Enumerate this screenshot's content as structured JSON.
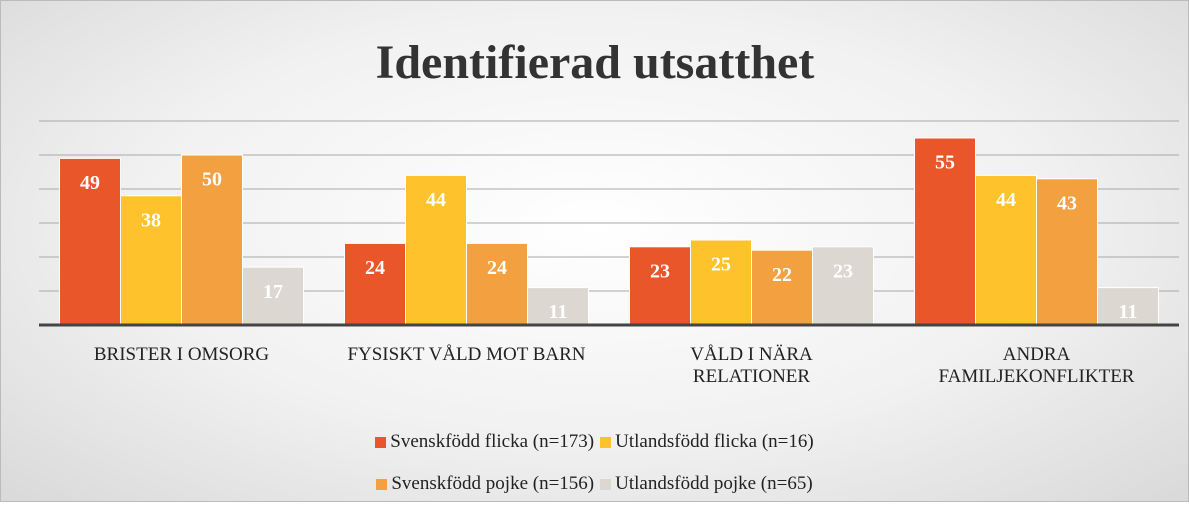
{
  "chart_data": {
    "type": "bar",
    "title": "Identifierad utsatthet",
    "categories": [
      "BRISTER I OMSORG",
      "FYSISKT VÅLD MOT BARN",
      "VÅLD I NÄRA RELATIONER",
      "ANDRA FAMILJEKONFLIKTER"
    ],
    "series": [
      {
        "name": "Svenskfödd flicka (n=173)",
        "color": "#e8562a",
        "values": [
          49,
          24,
          23,
          55
        ]
      },
      {
        "name": "Utlandsfödd flicka (n=16)",
        "color": "#fdc22c",
        "values": [
          38,
          44,
          25,
          44
        ]
      },
      {
        "name": "Svenskfödd pojke (n=156)",
        "color": "#f2a040",
        "values": [
          50,
          24,
          22,
          43
        ]
      },
      {
        "name": "Utlandsfödd pojke (n=65)",
        "color": "#dcd7d0",
        "values": [
          17,
          11,
          23,
          11
        ]
      }
    ],
    "ylim": [
      0,
      60
    ],
    "yticks": [
      0,
      10,
      20,
      30,
      40,
      50,
      60
    ],
    "grid": true,
    "legend": "bottom"
  }
}
